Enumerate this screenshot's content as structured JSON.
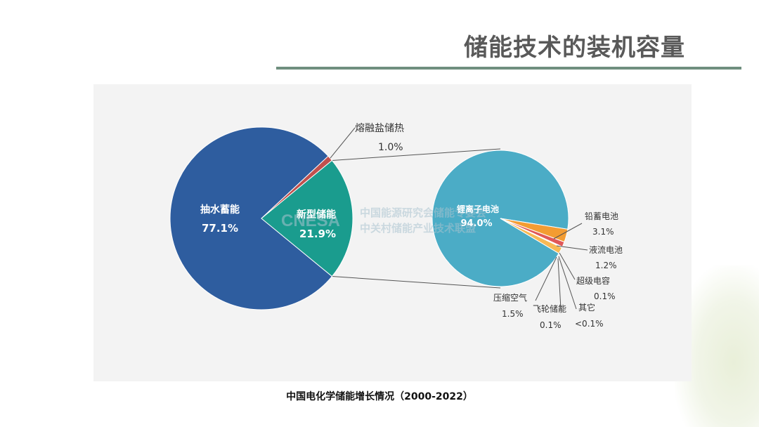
{
  "slide": {
    "title": "储能技术的装机容量",
    "caption": "中国电化学储能增长情况（2000-2022）"
  },
  "watermark": {
    "logo": "CNESA",
    "line1": "中国能源研究会储能专委会",
    "line2": "中关村储能产业技术联盟"
  },
  "colors": {
    "pumped": "#2e5d9f",
    "new_storage": "#1a9c8e",
    "molten_salt": "#c0504d",
    "li_ion": "#4bacc6",
    "lead": "#f39c32",
    "flow": "#e05858",
    "other_small": "#f2c94c"
  },
  "chart_data": [
    {
      "type": "pie",
      "slices": [
        {
          "label": "抽水蓄能",
          "value": 77.1,
          "display": "77.1%"
        },
        {
          "label": "新型储能",
          "value": 21.9,
          "display": "21.9%"
        },
        {
          "label": "熔融盐储热",
          "value": 1.0,
          "display": "1.0%"
        }
      ],
      "exploded": "新型储能"
    },
    {
      "type": "pie",
      "slices": [
        {
          "label": "锂离子电池",
          "value": 94.0,
          "display": "94.0%"
        },
        {
          "label": "铅蓄电池",
          "value": 3.1,
          "display": "3.1%"
        },
        {
          "label": "液流电池",
          "value": 1.2,
          "display": "1.2%"
        },
        {
          "label": "超级电容",
          "value": 0.1,
          "display": "0.1%"
        },
        {
          "label": "其它",
          "value": 0.05,
          "display": "<0.1%"
        },
        {
          "label": "飞轮储能",
          "value": 0.1,
          "display": "0.1%"
        },
        {
          "label": "压缩空气",
          "value": 1.5,
          "display": "1.5%"
        }
      ],
      "breakdown_of": "新型储能"
    }
  ]
}
